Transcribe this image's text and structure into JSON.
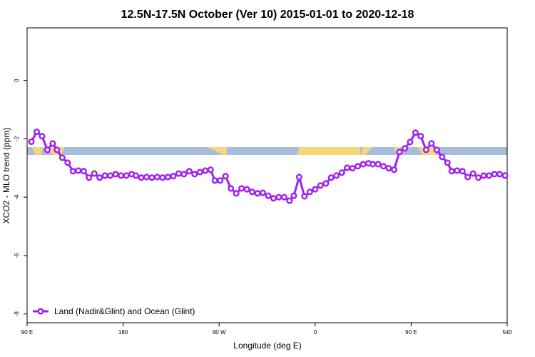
{
  "chart_data": {
    "type": "line",
    "title": "12.5N-17.5N October (Ver 10)   2015-01-01 to 2020-12-18",
    "x_label": "Longitude (deg E)",
    "y_label": "XCO2 - MLO trend (ppm)",
    "xlim": [
      90,
      540
    ],
    "ylim": [
      -8.3,
      1.8
    ],
    "xticks": [
      {
        "value": 90,
        "label": "90 E"
      },
      180,
      {
        "value": 270,
        "label": "90 W"
      },
      {
        "value": 360,
        "label": "0"
      },
      {
        "value": 450,
        "label": "90 E"
      },
      540
    ],
    "yticks": [
      0,
      -2,
      -4,
      -6,
      -8
    ],
    "legend": "bottom-left",
    "series": [
      {
        "name": "Land (Nadir&Glint) and Ocean (Glint)",
        "color": "#a020f0",
        "x": [
          94,
          99,
          104,
          109,
          114,
          118,
          123,
          128,
          133,
          138,
          143,
          148,
          153,
          158,
          163,
          168,
          173,
          178,
          183,
          188,
          192,
          197,
          202,
          207,
          212,
          217,
          222,
          227,
          232,
          237,
          242,
          247,
          252,
          257,
          262,
          266,
          271,
          276,
          281,
          286,
          291,
          296,
          301,
          306,
          311,
          316,
          321,
          326,
          331,
          336,
          340,
          345,
          350,
          355,
          360,
          365,
          370,
          375,
          380,
          385,
          390,
          395,
          400,
          405,
          410,
          414,
          419,
          424,
          429,
          434,
          439,
          444,
          449,
          454,
          459,
          464,
          469,
          474,
          479,
          484,
          488,
          493,
          498,
          503,
          508,
          513,
          518,
          523,
          528,
          533,
          538
        ],
        "values": [
          -2.1,
          -1.76,
          -1.91,
          -2.38,
          -2.16,
          -2.38,
          -2.65,
          -2.82,
          -3.11,
          -3.09,
          -3.11,
          -3.33,
          -3.19,
          -3.33,
          -3.26,
          -3.26,
          -3.21,
          -3.26,
          -3.26,
          -3.21,
          -3.26,
          -3.33,
          -3.31,
          -3.33,
          -3.31,
          -3.33,
          -3.31,
          -3.28,
          -3.19,
          -3.21,
          -3.11,
          -3.21,
          -3.14,
          -3.09,
          -3.06,
          -3.43,
          -3.43,
          -3.28,
          -3.7,
          -3.87,
          -3.7,
          -3.73,
          -3.82,
          -3.87,
          -3.85,
          -3.95,
          -4.04,
          -4.0,
          -4.0,
          -4.12,
          -3.95,
          -3.31,
          -3.97,
          -3.82,
          -3.73,
          -3.6,
          -3.53,
          -3.33,
          -3.26,
          -3.16,
          -2.99,
          -3.01,
          -2.94,
          -2.87,
          -2.84,
          -2.87,
          -2.87,
          -2.94,
          -3.01,
          -3.06,
          -2.45,
          -2.33,
          -2.11,
          -1.79,
          -1.91,
          -2.38,
          -2.16,
          -2.38,
          -2.62,
          -2.82,
          -3.11,
          -3.09,
          -3.11,
          -3.31,
          -3.19,
          -3.33,
          -3.26,
          -3.26,
          -3.21,
          -3.21,
          -3.26
        ]
      }
    ]
  }
}
